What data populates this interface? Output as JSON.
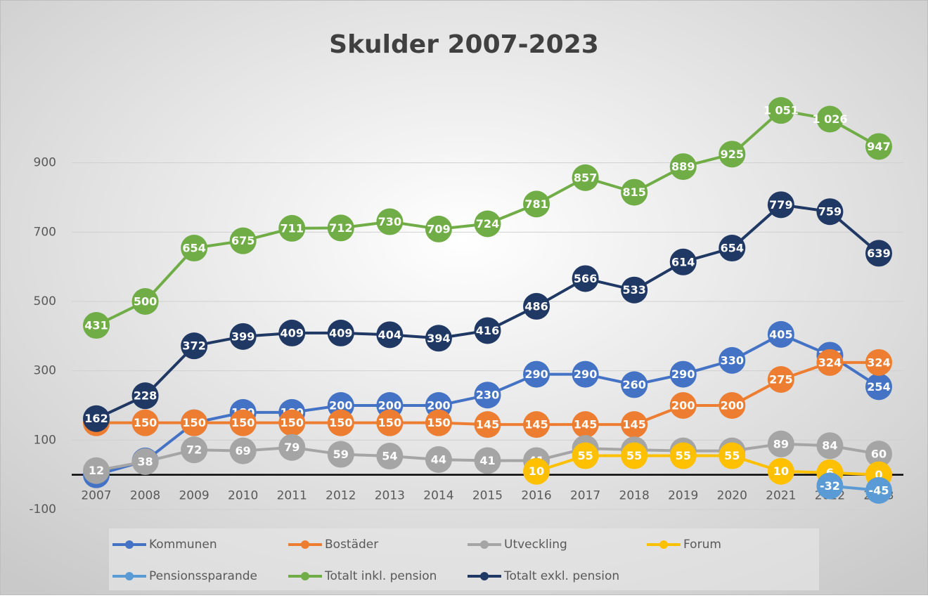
{
  "chart_data": {
    "type": "line",
    "title": "Skulder 2007-2023",
    "categories": [
      "2007",
      "2008",
      "2009",
      "2010",
      "2011",
      "2012",
      "2013",
      "2014",
      "2015",
      "2016",
      "2017",
      "2018",
      "2019",
      "2020",
      "2021",
      "2022",
      "2023"
    ],
    "ylim": [
      -100,
      1100
    ],
    "yticks": [
      -100,
      100,
      300,
      500,
      700,
      900
    ],
    "grid": true,
    "legend": "bottom",
    "series": [
      {
        "name": "Kommunen",
        "color": "#4472c4",
        "values": [
          0,
          40,
          150,
          180,
          180,
          200,
          200,
          200,
          230,
          290,
          290,
          260,
          290,
          330,
          405,
          345,
          254
        ]
      },
      {
        "name": "Bostäder",
        "color": "#ed7d31",
        "values": [
          150,
          150,
          150,
          150,
          150,
          150,
          150,
          150,
          145,
          145,
          145,
          145,
          200,
          200,
          275,
          324,
          324
        ]
      },
      {
        "name": "Utveckling",
        "color": "#a5a5a5",
        "values": [
          12,
          38,
          72,
          69,
          79,
          59,
          54,
          44,
          41,
          41,
          76,
          72,
          69,
          69,
          89,
          84,
          60
        ]
      },
      {
        "name": "Forum",
        "color": "#ffc000",
        "values": [
          null,
          null,
          null,
          null,
          null,
          null,
          null,
          null,
          null,
          10,
          55,
          55,
          55,
          55,
          10,
          6,
          0
        ]
      },
      {
        "name": "Pensionssparande",
        "color": "#5b9bd5",
        "values": [
          null,
          null,
          null,
          null,
          null,
          null,
          null,
          null,
          null,
          null,
          null,
          null,
          null,
          null,
          null,
          -32,
          -45
        ]
      },
      {
        "name": "Totalt inkl. pension",
        "color": "#70ad47",
        "values": [
          431,
          500,
          654,
          675,
          711,
          712,
          730,
          709,
          724,
          781,
          857,
          815,
          889,
          925,
          1051,
          1026,
          947
        ],
        "value_labels": [
          "431",
          "500",
          "654",
          "675",
          "711",
          "712",
          "730",
          "709",
          "724",
          "781",
          "857",
          "815",
          "889",
          "925",
          "1 051",
          "1 026",
          "947"
        ]
      },
      {
        "name": "Totalt exkl. pension",
        "color": "#203864",
        "values": [
          162,
          228,
          372,
          399,
          409,
          409,
          404,
          394,
          416,
          486,
          566,
          533,
          614,
          654,
          779,
          759,
          639
        ]
      }
    ]
  }
}
